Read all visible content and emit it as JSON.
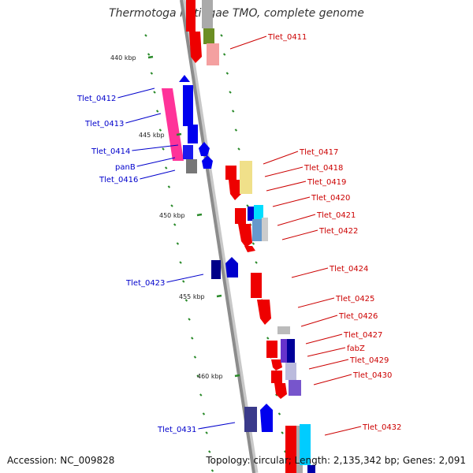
{
  "title": "Thermotoga lettingae TMO, complete genome",
  "accession": "Accession: NC_009828",
  "summary": "Topology: circular; Length: 2,135,342 bp; Genes: 2,091",
  "colors": {
    "label_forward": "#cc0000",
    "label_reverse": "#0000cc",
    "backbone": "#8c8c8c",
    "tick": "#2a8a2a"
  },
  "scale_labels": [
    "440 kbp",
    "445 kbp",
    "450 kbp",
    "455 kbp",
    "460 kbp"
  ],
  "genes_reverse": [
    "Tlet_0412",
    "Tlet_0413",
    "Tlet_0414",
    "panB",
    "Tlet_0416",
    "Tlet_0423",
    "Tlet_0431"
  ],
  "genes_forward": [
    "Tlet_0411",
    "Tlet_0417",
    "Tlet_0418",
    "Tlet_0419",
    "Tlet_0420",
    "Tlet_0421",
    "Tlet_0422",
    "Tlet_0424",
    "Tlet_0425",
    "Tlet_0426",
    "Tlet_0427",
    "fabZ",
    "Tlet_0429",
    "Tlet_0430",
    "Tlet_0432"
  ]
}
